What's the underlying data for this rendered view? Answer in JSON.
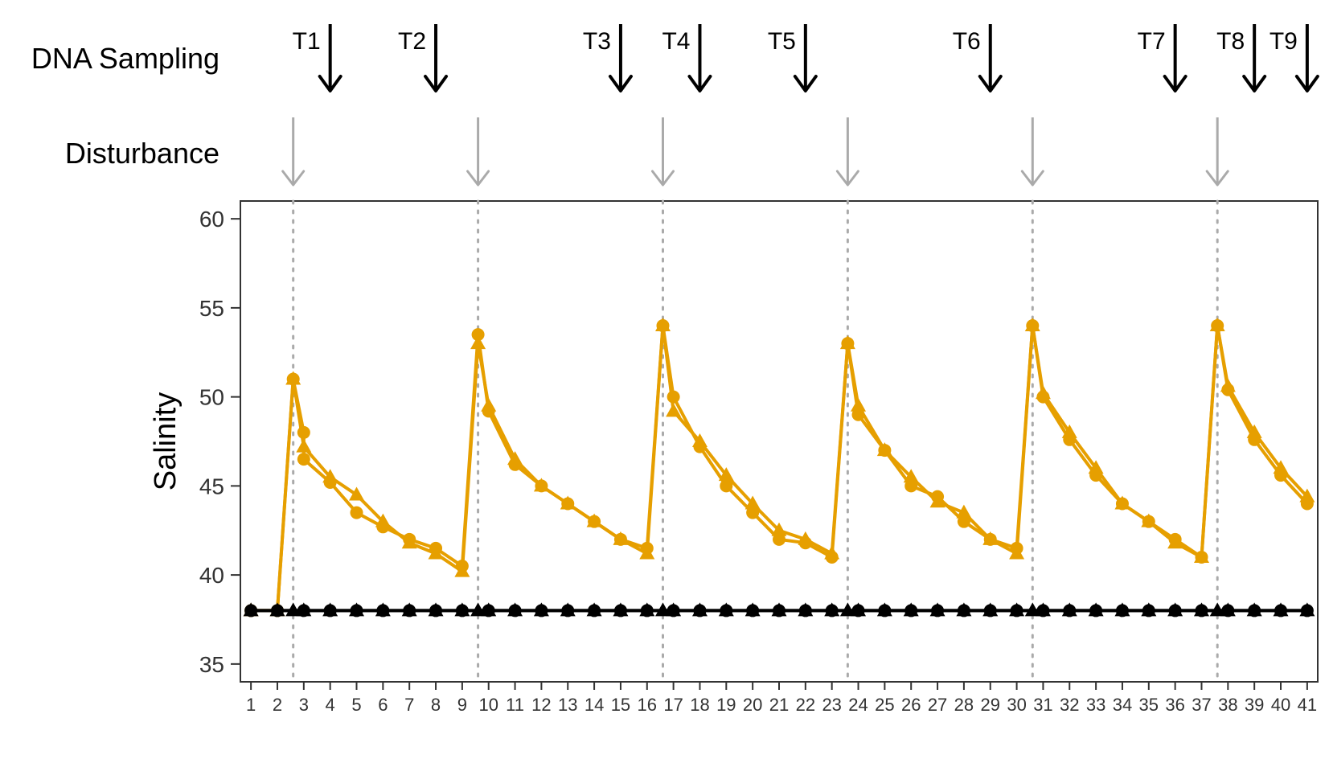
{
  "chart_data": {
    "type": "line",
    "ylabel": "Salinity",
    "xlabel": "",
    "ylim": [
      34,
      61
    ],
    "xlim": [
      0.6,
      41.4
    ],
    "yticks": [
      35,
      40,
      45,
      50,
      55,
      60
    ],
    "xticks": [
      1,
      2,
      3,
      4,
      5,
      6,
      7,
      8,
      9,
      10,
      11,
      12,
      13,
      14,
      15,
      16,
      17,
      18,
      19,
      20,
      21,
      22,
      23,
      24,
      25,
      26,
      27,
      28,
      29,
      30,
      31,
      32,
      33,
      34,
      35,
      36,
      37,
      38,
      39,
      40,
      41
    ],
    "grid": false,
    "colors": {
      "disturbed": "#E69F00",
      "control": "#000000",
      "disturbance_arrow": "#AAAAAA",
      "sampling_arrow": "#000000"
    },
    "row_labels": {
      "sampling": "DNA Sampling",
      "disturbance": "Disturbance"
    },
    "disturbance_days": [
      2.6,
      9.6,
      16.6,
      23.6,
      30.6,
      37.6
    ],
    "sampling_events": [
      {
        "label": "T1",
        "day": 4
      },
      {
        "label": "T2",
        "day": 8
      },
      {
        "label": "T3",
        "day": 15
      },
      {
        "label": "T4",
        "day": 18
      },
      {
        "label": "T5",
        "day": 22
      },
      {
        "label": "T6",
        "day": 29
      },
      {
        "label": "T7",
        "day": 36
      },
      {
        "label": "T8",
        "day": 39
      },
      {
        "label": "T9",
        "day": 41
      }
    ],
    "series": [
      {
        "marker": "circle",
        "color": "#E69F00",
        "x": [
          1,
          2,
          2.6,
          3,
          3,
          4,
          5,
          6,
          7,
          8,
          9,
          9.6,
          10,
          11,
          12,
          13,
          14,
          15,
          16,
          16.6,
          17,
          18,
          19,
          20,
          21,
          22,
          23,
          23.6,
          24,
          25,
          26,
          27,
          28,
          29,
          30,
          30.6,
          31,
          32,
          33,
          34,
          35,
          36,
          37,
          37.6,
          38,
          39,
          40,
          41
        ],
        "y": [
          38,
          38,
          51,
          48,
          46.5,
          45.2,
          43.5,
          42.7,
          42,
          41.5,
          40.5,
          53.5,
          49.2,
          46.2,
          45,
          44,
          43,
          42,
          41.5,
          54,
          50,
          47.2,
          45,
          43.5,
          42,
          41.8,
          41,
          53,
          49,
          47,
          45,
          44.4,
          43,
          42,
          41.5,
          54,
          50,
          47.6,
          45.6,
          44,
          43,
          42,
          41,
          54,
          50.4,
          47.6,
          45.6,
          44
        ]
      },
      {
        "marker": "triangle",
        "color": "#E69F00",
        "x": [
          1,
          2,
          2.6,
          3,
          4,
          5,
          6,
          7,
          8,
          9,
          9.6,
          10,
          11,
          12,
          13,
          14,
          15,
          16,
          16.6,
          17,
          18,
          19,
          20,
          21,
          22,
          23,
          23.6,
          24,
          25,
          26,
          27,
          28,
          29,
          30,
          30.6,
          31,
          32,
          33,
          34,
          35,
          36,
          37,
          37.6,
          38,
          39,
          40,
          41
        ],
        "y": [
          38,
          38,
          51,
          47.2,
          45.5,
          44.5,
          43,
          41.8,
          41.2,
          40.2,
          53,
          49.5,
          46.5,
          45,
          44,
          43,
          42,
          41.2,
          54,
          49.2,
          47.5,
          45.6,
          44,
          42.5,
          42,
          41.2,
          53,
          49.5,
          47,
          45.5,
          44.1,
          43.5,
          42,
          41.2,
          54,
          50.2,
          48,
          46,
          44,
          43,
          41.8,
          41,
          54,
          50.6,
          48,
          46,
          44.4
        ]
      },
      {
        "marker": "circle",
        "color": "#000000",
        "x": [
          1,
          2,
          3,
          4,
          5,
          6,
          7,
          8,
          9,
          10,
          11,
          12,
          13,
          14,
          15,
          16,
          17,
          18,
          19,
          20,
          21,
          22,
          23,
          24,
          25,
          26,
          27,
          28,
          29,
          30,
          31,
          32,
          33,
          34,
          35,
          36,
          37,
          38,
          39,
          40,
          41
        ],
        "y": [
          38,
          38,
          38,
          38,
          38,
          38,
          38,
          38,
          38,
          38,
          38,
          38,
          38,
          38,
          38,
          38,
          38,
          38,
          38,
          38,
          38,
          38,
          38,
          38,
          38,
          38,
          38,
          38,
          38,
          38,
          38,
          38,
          38,
          38,
          38,
          38,
          38,
          38,
          38,
          38,
          38
        ]
      },
      {
        "marker": "triangle",
        "color": "#000000",
        "x": [
          1,
          2,
          2.6,
          3,
          4,
          5,
          6,
          7,
          8,
          9,
          9.6,
          10,
          11,
          12,
          13,
          14,
          15,
          16,
          16.6,
          17,
          18,
          19,
          20,
          21,
          22,
          23,
          23.6,
          24,
          25,
          26,
          27,
          28,
          29,
          30,
          30.6,
          31,
          32,
          33,
          34,
          35,
          36,
          37,
          37.6,
          38,
          39,
          40,
          41
        ],
        "y": [
          38,
          38,
          38,
          38,
          38,
          38,
          38,
          38,
          38,
          38,
          38,
          38,
          38,
          38,
          38,
          38,
          38,
          38,
          38,
          38,
          38,
          38,
          38,
          38,
          38,
          38,
          38,
          38,
          38,
          38,
          38,
          38,
          38,
          38,
          38,
          38,
          38,
          38,
          38,
          38,
          38,
          38,
          38,
          38,
          38,
          38,
          38
        ]
      }
    ]
  }
}
